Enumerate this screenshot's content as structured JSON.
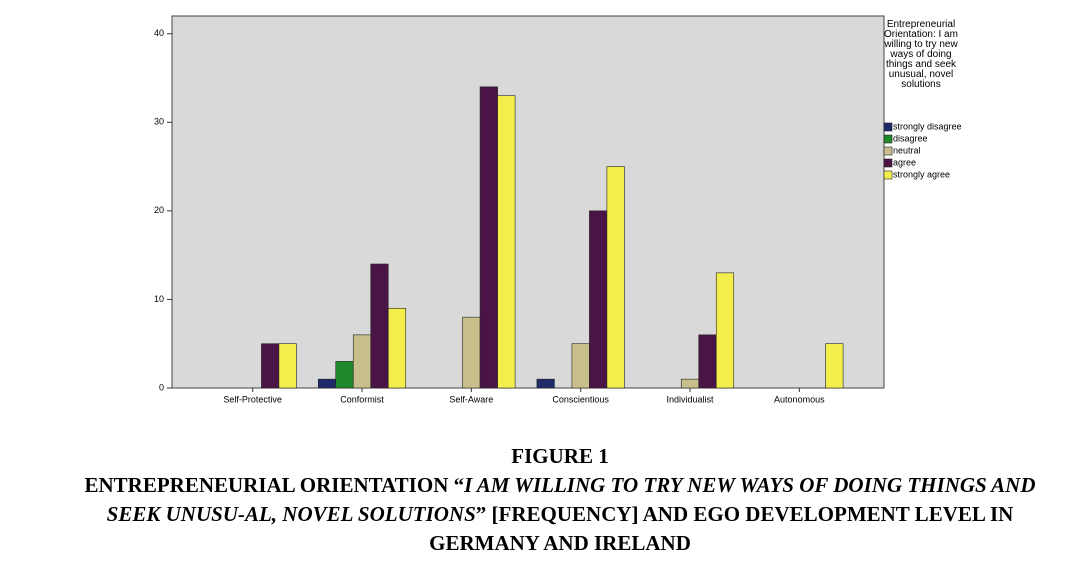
{
  "chart_data": {
    "type": "bar",
    "categories": [
      "Self-Protective",
      "Conformist",
      "Self-Aware",
      "Conscientious",
      "Individualist",
      "Autonomous"
    ],
    "series": [
      {
        "name": "strongly disagree",
        "color": "#1f2a6b",
        "values": [
          0,
          1,
          0,
          1,
          0,
          0
        ]
      },
      {
        "name": "disagree",
        "color": "#1f8a2c",
        "values": [
          0,
          3,
          0,
          0,
          0,
          0
        ]
      },
      {
        "name": "neutral",
        "color": "#c8bf8c",
        "values": [
          0,
          6,
          8,
          5,
          1,
          0
        ]
      },
      {
        "name": "agree",
        "color": "#4a1546",
        "values": [
          5,
          14,
          34,
          20,
          6,
          0
        ]
      },
      {
        "name": "strongly agree",
        "color": "#f4ee4c",
        "values": [
          5,
          9,
          33,
          25,
          13,
          5
        ]
      }
    ],
    "legend_title": "Entrepreneurial Orientation: I am willing to try new ways of doing things and seek unusual, novel solutions",
    "ylim": [
      0,
      42
    ],
    "yticks": [
      0,
      10,
      20,
      30,
      40
    ],
    "grid": false
  },
  "caption": {
    "label": "FIGURE 1",
    "parts": [
      "ENTREPRENEURIAL ORIENTATION “",
      "I AM WILLING TO TRY NEW WAYS OF DOING THINGS AND SEEK UNUSU-AL, NOVEL SOLUTIONS",
      "” [FREQUENCY] AND EGO DEVELOPMENT LEVEL IN GERMANY AND IRELAND"
    ]
  }
}
